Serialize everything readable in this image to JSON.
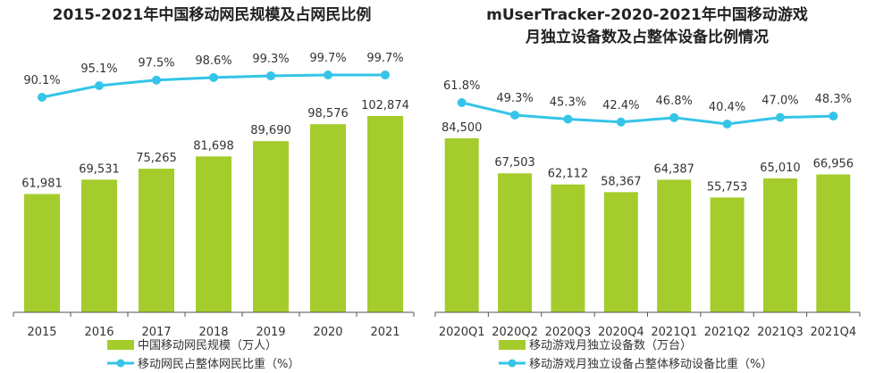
{
  "colors": {
    "bar": "#a4cc2c",
    "line": "#36c4e8",
    "axis": "#555555"
  },
  "chart_data": [
    {
      "type": "bar+line",
      "title_lines": [
        "2015-2021年中国移动网民规模及占网民比例"
      ],
      "categories": [
        "2015",
        "2016",
        "2017",
        "2018",
        "2019",
        "2020",
        "2021"
      ],
      "series": [
        {
          "name": "中国移动网民规模（万人）",
          "kind": "bar",
          "values": [
            61981,
            69531,
            75265,
            81698,
            89690,
            98576,
            102874
          ],
          "labels": [
            "61,981",
            "69,531",
            "75,265",
            "81,698",
            "89,690",
            "98,576",
            "102,874"
          ]
        },
        {
          "name": "移动网民占整体网民比重（%）",
          "kind": "line",
          "values": [
            90.1,
            95.1,
            97.5,
            98.6,
            99.3,
            99.7,
            99.7
          ],
          "labels": [
            "90.1%",
            "95.1%",
            "97.5%",
            "98.6%",
            "99.3%",
            "99.7%",
            "99.7%"
          ]
        }
      ],
      "bar_range": [
        0,
        102874
      ],
      "line_range": [
        90.1,
        99.7
      ],
      "grid": false,
      "legend": "bottom"
    },
    {
      "type": "bar+line",
      "title_lines": [
        "mUserTracker-2020-2021年中国移动游戏",
        "月独立设备数及占整体设备比例情况"
      ],
      "categories": [
        "2020Q1",
        "2020Q2",
        "2020Q3",
        "2020Q4",
        "2021Q1",
        "2021Q2",
        "2021Q3",
        "2021Q4"
      ],
      "series": [
        {
          "name": "移动游戏月独立设备数（万台）",
          "kind": "bar",
          "values": [
            84500,
            67503,
            62112,
            58367,
            64387,
            55753,
            65010,
            66956
          ],
          "labels": [
            "84,500",
            "67,503",
            "62,112",
            "58,367",
            "64,387",
            "55,753",
            "65,010",
            "66,956"
          ]
        },
        {
          "name": "移动游戏月独立设备占整体移动设备比重（%）",
          "kind": "line",
          "values": [
            61.8,
            49.3,
            45.3,
            42.4,
            46.8,
            40.4,
            47.0,
            48.3
          ],
          "labels": [
            "61.8%",
            "49.3%",
            "45.3%",
            "42.4%",
            "46.8%",
            "40.4%",
            "47.0%",
            "48.3%"
          ]
        }
      ],
      "bar_range": [
        0,
        84500
      ],
      "line_range": [
        40.4,
        61.8
      ],
      "grid": false,
      "legend": "bottom"
    }
  ]
}
